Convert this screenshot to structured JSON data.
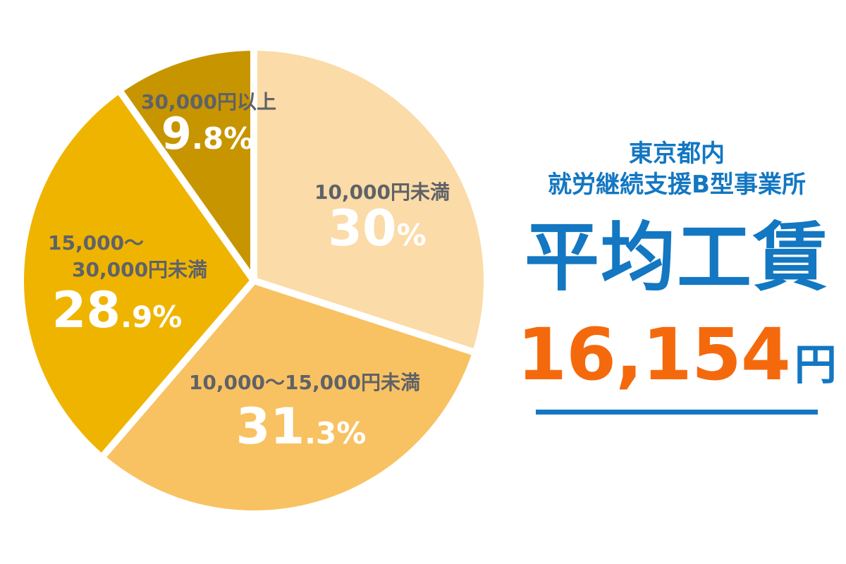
{
  "chart_data": {
    "type": "pie",
    "start_angle_deg": 0,
    "direction": "clockwise",
    "separator_color": "#FFFFFF",
    "label_color": "#5F6267",
    "pct_color": "#FFFFFF",
    "slices": [
      {
        "name": "under-10000",
        "label": "10,000円未満",
        "value": 30,
        "pct_big": "30",
        "pct_small": "%",
        "color": "#FBDBA7"
      },
      {
        "name": "10000-15000",
        "label": "10,000〜15,000円未満",
        "value": 31.3,
        "pct_big": "31",
        "pct_small": ".3%",
        "color": "#F8C262"
      },
      {
        "name": "15000-30000",
        "label_lines": [
          "15,000〜",
          "30,000円未満"
        ],
        "value": 28.9,
        "pct_big": "28",
        "pct_small": ".9%",
        "color": "#EFB400"
      },
      {
        "name": "over-30000",
        "label": "30,000円以上",
        "value": 9.8,
        "pct_big": "9",
        "pct_small": ".8%",
        "color": "#C79500"
      }
    ]
  },
  "panel": {
    "region_line1": "東京都内",
    "region_line2": "就労継続支援B型事業所",
    "metric_label": "平均工賃",
    "amount": "16,154",
    "amount_unit": "円",
    "accent_blue": "#1377C2",
    "accent_orange": "#F5690D"
  }
}
